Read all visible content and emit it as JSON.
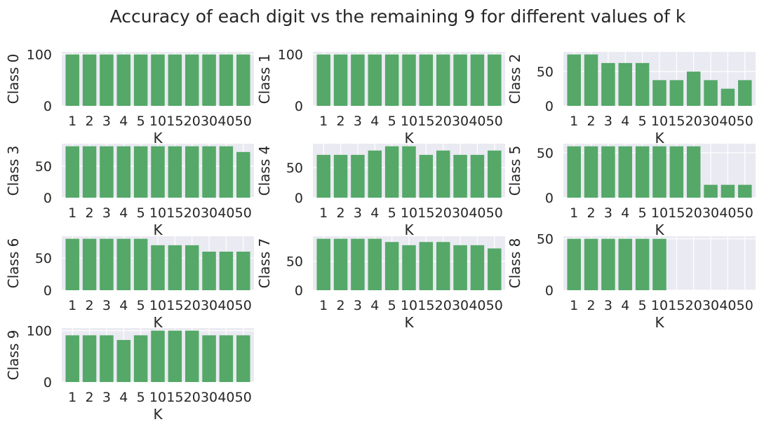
{
  "title": "Accuracy of each digit vs the remaining 9 for different values of k",
  "colors": {
    "bar": "#55a868",
    "panel_bg": "#eaeaf2",
    "grid": "#ffffff",
    "text": "#262626"
  },
  "chart_data": {
    "type": "bar",
    "grid": true,
    "subplots": [
      {
        "ylabel": "Class 0",
        "xlabel": "K",
        "categories": [
          "1",
          "2",
          "3",
          "4",
          "5",
          "10",
          "15",
          "20",
          "30",
          "40",
          "50"
        ],
        "values": [
          100,
          100,
          100,
          100,
          100,
          100,
          100,
          100,
          100,
          100,
          100
        ],
        "yticks": [
          0,
          100
        ],
        "ylim": [
          0,
          105
        ]
      },
      {
        "ylabel": "Class 1",
        "xlabel": "K",
        "categories": [
          "1",
          "2",
          "3",
          "4",
          "5",
          "10",
          "15",
          "20",
          "30",
          "40",
          "50"
        ],
        "values": [
          100,
          100,
          100,
          100,
          100,
          100,
          100,
          100,
          100,
          100,
          100
        ],
        "yticks": [
          0,
          100
        ],
        "ylim": [
          0,
          105
        ]
      },
      {
        "ylabel": "Class 2",
        "xlabel": "K",
        "categories": [
          "1",
          "2",
          "3",
          "4",
          "5",
          "10",
          "15",
          "20",
          "30",
          "40",
          "50"
        ],
        "values": [
          75,
          75,
          62.5,
          62.5,
          62.5,
          37.5,
          37.5,
          50,
          37.5,
          25,
          37.5
        ],
        "yticks": [
          0,
          50
        ],
        "ylim": [
          0,
          78.75
        ]
      },
      {
        "ylabel": "Class 3",
        "xlabel": "K",
        "categories": [
          "1",
          "2",
          "3",
          "4",
          "5",
          "10",
          "15",
          "20",
          "30",
          "40",
          "50"
        ],
        "values": [
          81.8,
          81.8,
          81.8,
          81.8,
          81.8,
          81.8,
          81.8,
          81.8,
          81.8,
          81.8,
          72.7
        ],
        "yticks": [
          0,
          50
        ],
        "ylim": [
          0,
          85.9
        ]
      },
      {
        "ylabel": "Class 4",
        "xlabel": "K",
        "categories": [
          "1",
          "2",
          "3",
          "4",
          "5",
          "10",
          "15",
          "20",
          "30",
          "40",
          "50"
        ],
        "values": [
          71.4,
          71.4,
          71.4,
          78.6,
          85.7,
          85.7,
          71.4,
          78.6,
          71.4,
          71.4,
          78.6
        ],
        "yticks": [
          0,
          50
        ],
        "ylim": [
          0,
          90
        ]
      },
      {
        "ylabel": "Class 5",
        "xlabel": "K",
        "categories": [
          "1",
          "2",
          "3",
          "4",
          "5",
          "10",
          "15",
          "20",
          "30",
          "40",
          "50"
        ],
        "values": [
          57.1,
          57.1,
          57.1,
          57.1,
          57.1,
          57.1,
          57.1,
          57.1,
          14.3,
          14.3,
          14.3
        ],
        "yticks": [
          0,
          50
        ],
        "ylim": [
          0,
          60
        ]
      },
      {
        "ylabel": "Class 6",
        "xlabel": "K",
        "categories": [
          "1",
          "2",
          "3",
          "4",
          "5",
          "10",
          "15",
          "20",
          "30",
          "40",
          "50"
        ],
        "values": [
          80,
          80,
          80,
          80,
          80,
          70,
          70,
          70,
          60,
          60,
          60
        ],
        "yticks": [
          0,
          50
        ],
        "ylim": [
          0,
          84
        ]
      },
      {
        "ylabel": "Class 7",
        "xlabel": "K",
        "categories": [
          "1",
          "2",
          "3",
          "4",
          "5",
          "10",
          "15",
          "20",
          "30",
          "40",
          "50"
        ],
        "values": [
          88.9,
          88.9,
          88.9,
          88.9,
          83.3,
          77.8,
          83.3,
          83.3,
          77.8,
          77.8,
          72.2
        ],
        "yticks": [
          0,
          50
        ],
        "ylim": [
          0,
          93.3
        ]
      },
      {
        "ylabel": "Class 8",
        "xlabel": "K",
        "categories": [
          "1",
          "2",
          "3",
          "4",
          "5",
          "10",
          "15",
          "20",
          "30",
          "40",
          "50"
        ],
        "values": [
          50,
          50,
          50,
          50,
          50,
          50,
          0,
          0,
          0,
          0,
          0
        ],
        "yticks": [
          0,
          50
        ],
        "ylim": [
          0,
          52.5
        ]
      },
      {
        "ylabel": "Class 9",
        "xlabel": "K",
        "categories": [
          "1",
          "2",
          "3",
          "4",
          "5",
          "10",
          "15",
          "20",
          "30",
          "40",
          "50"
        ],
        "values": [
          90.9,
          90.9,
          90.9,
          81.8,
          90.9,
          100,
          100,
          100,
          90.9,
          90.9,
          90.9
        ],
        "yticks": [
          0,
          100
        ],
        "ylim": [
          0,
          105
        ]
      }
    ]
  }
}
